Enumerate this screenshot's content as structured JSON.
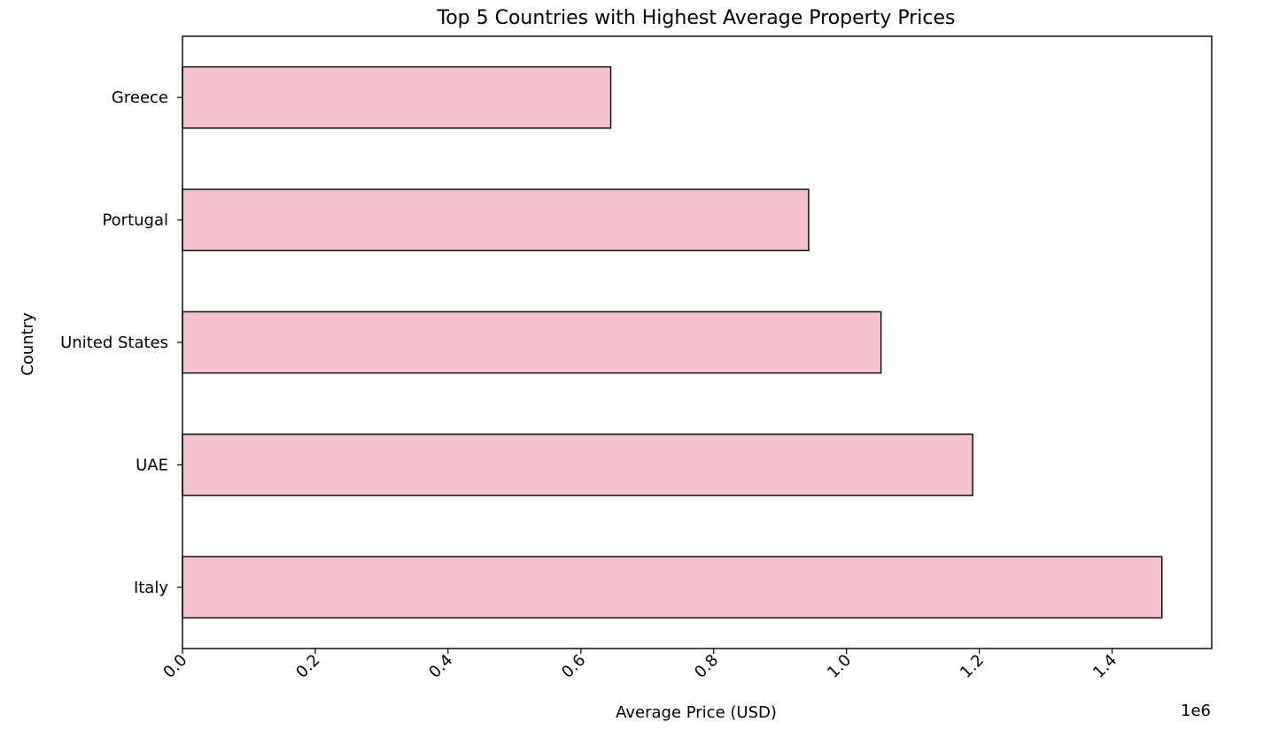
{
  "chart_data": {
    "type": "bar",
    "orientation": "horizontal",
    "title": "Top 5 Countries with Highest Average Property Prices",
    "xlabel": "Average Price (USD)",
    "ylabel": "Country",
    "x_offset_label": "1e6",
    "categories": [
      "Italy",
      "UAE",
      "United States",
      "Portugal",
      "Greece"
    ],
    "values": [
      1475000,
      1190000,
      1052000,
      943000,
      645000
    ],
    "xlim": [
      0,
      1550000
    ],
    "x_ticks": [
      0,
      200000,
      400000,
      600000,
      800000,
      1000000,
      1200000,
      1400000
    ],
    "x_tick_labels": [
      "0.0",
      "0.2",
      "0.4",
      "0.6",
      "0.8",
      "1.0",
      "1.2",
      "1.4"
    ],
    "grid": false,
    "colors": {
      "bar_fill": "#f4c2cc",
      "bar_edge": "#000000"
    }
  }
}
